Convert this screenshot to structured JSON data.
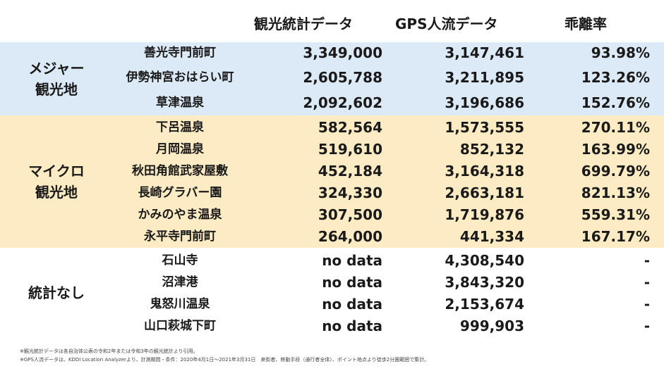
{
  "headers": {
    "stat": "観光統計データ",
    "gps": "GPS人流データ",
    "rate": "乖離率"
  },
  "groups": [
    {
      "label_lines": [
        "メジャー",
        "観光地"
      ],
      "rows": [
        {
          "name": "善光寺門前町",
          "stat": "3,349,000",
          "gps": "3,147,461",
          "rate": "93.98%"
        },
        {
          "name": "伊勢神宮おはらい町",
          "stat": "2,605,788",
          "gps": "3,211,895",
          "rate": "123.26%"
        },
        {
          "name": "草津温泉",
          "stat": "2,092,602",
          "gps": "3,196,686",
          "rate": "152.76%"
        }
      ]
    },
    {
      "label_lines": [
        "マイクロ",
        "観光地"
      ],
      "rows": [
        {
          "name": "下呂温泉",
          "stat": "582,564",
          "gps": "1,573,555",
          "rate": "270.11%"
        },
        {
          "name": "月岡温泉",
          "stat": "519,610",
          "gps": "852,132",
          "rate": "163.99%"
        },
        {
          "name": "秋田角館武家屋敷",
          "stat": "452,184",
          "gps": "3,164,318",
          "rate": "699.79%"
        },
        {
          "name": "長崎グラバー園",
          "stat": "324,330",
          "gps": "2,663,181",
          "rate": "821.13%"
        },
        {
          "name": "かみのやま温泉",
          "stat": "307,500",
          "gps": "1,719,876",
          "rate": "559.31%"
        },
        {
          "name": "永平寺門前町",
          "stat": "264,000",
          "gps": "441,334",
          "rate": "167.17%"
        }
      ]
    },
    {
      "label_lines": [
        "統計なし"
      ],
      "rows": [
        {
          "name": "石山寺",
          "stat": "no data",
          "gps": "4,308,540",
          "rate": "-"
        },
        {
          "name": "沼津港",
          "stat": "no data",
          "gps": "3,843,320",
          "rate": "-"
        },
        {
          "name": "鬼怒川温泉",
          "stat": "no data",
          "gps": "2,153,674",
          "rate": "-"
        },
        {
          "name": "山口萩城下町",
          "stat": "no data",
          "gps": "999,903",
          "rate": "-"
        }
      ]
    }
  ],
  "footnotes": [
    "※観光統計データは各自治体公表の令和2年または令和3年の観光統計より引用。",
    "※GPS人流データは、KDDI Location Analyzerより、計測期間・条件：2020年4月1日〜2021年3月31日　来街者、移動手段（通行者全体）、ポイント地点より徒歩2分圏範囲で集計。"
  ]
}
